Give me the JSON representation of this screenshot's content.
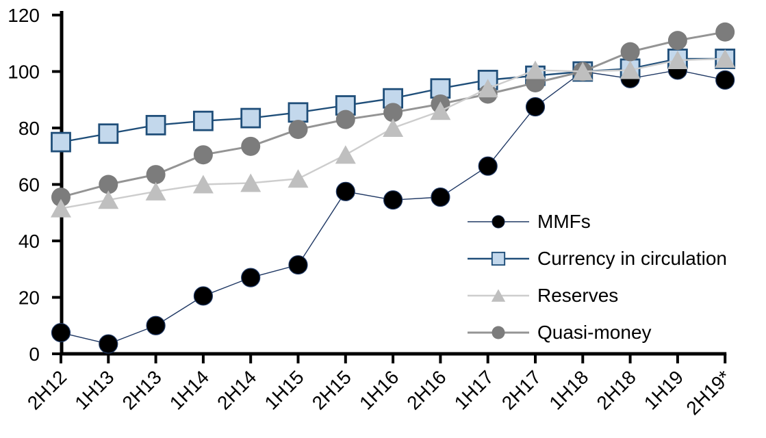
{
  "chart_data": {
    "type": "line",
    "title": "",
    "xlabel": "",
    "ylabel": "",
    "background": "#FFFFFF",
    "text_color": "#000000",
    "axis_color": "#000000",
    "grid": false,
    "categories": [
      "2H12",
      "1H13",
      "2H13",
      "1H14",
      "2H14",
      "1H15",
      "2H15",
      "1H16",
      "2H16",
      "1H17",
      "2H17",
      "1H18",
      "2H18",
      "1H19",
      "2H19*"
    ],
    "y_axis": {
      "min": 0,
      "max": 120,
      "tick_step": 20,
      "tick_labels": [
        "0",
        "20",
        "40",
        "60",
        "80",
        "100",
        "120"
      ]
    },
    "x_axis": {
      "label_rotation": -45
    },
    "series": [
      {
        "name": "MMFs",
        "marker": "circle",
        "marker_color": "#000000",
        "marker_border": "#1F3864",
        "marker_border_width": 1.2,
        "marker_size": 13.5,
        "line_color": "#1F3864",
        "line_width": 1.4,
        "values": [
          7.5,
          3.5,
          10,
          20.5,
          27,
          31.5,
          57.5,
          54.5,
          55.5,
          66.5,
          87.5,
          100,
          97.5,
          100.5,
          97
        ]
      },
      {
        "name": "Currency in circulation",
        "marker": "square",
        "marker_color": "#C3D8EC",
        "marker_border": "#1F4E79",
        "marker_border_width": 2.8,
        "marker_size": 13.5,
        "line_color": "#1F4E79",
        "line_width": 2.4,
        "values": [
          75,
          78,
          81,
          82.5,
          83.5,
          85.5,
          88,
          90.5,
          94,
          97,
          98.5,
          100,
          101,
          104.5,
          104.5
        ]
      },
      {
        "name": "Reserves",
        "marker": "triangle",
        "marker_color": "#BFBFBF",
        "marker_border": "none",
        "marker_border_width": 0,
        "marker_size": 15,
        "line_color": "#CDCDCD",
        "line_width": 2.4,
        "values": [
          51.5,
          54.5,
          57.5,
          60,
          60.5,
          62,
          70.5,
          80,
          86,
          94,
          100.5,
          100,
          100.5,
          104,
          104.5
        ]
      },
      {
        "name": "Quasi-money",
        "marker": "circle",
        "marker_color": "#7C7C7C",
        "marker_border": "none",
        "marker_border_width": 0,
        "marker_size": 14,
        "line_color": "#949494",
        "line_width": 3,
        "values": [
          55.5,
          60,
          63.5,
          70.5,
          73.5,
          79.5,
          83,
          85.5,
          88.5,
          92,
          96,
          100,
          107,
          111,
          114
        ]
      }
    ],
    "draw_order": [
      0,
      1,
      3,
      2
    ],
    "legend": {
      "position": "inside-right",
      "entries": [
        "MMFs",
        "Currency in circulation",
        "Reserves",
        "Quasi-money"
      ]
    }
  }
}
